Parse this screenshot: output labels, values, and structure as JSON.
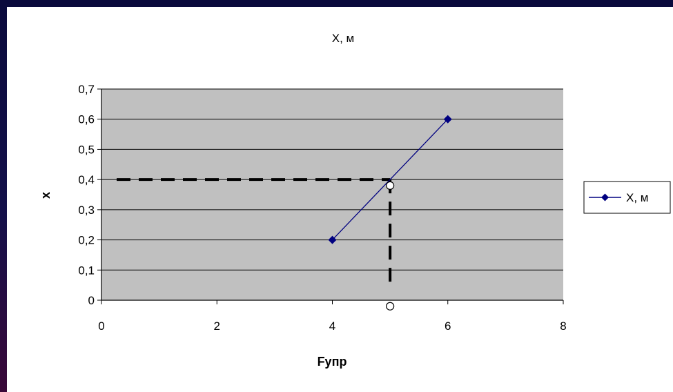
{
  "chart_data": {
    "type": "line",
    "title": "X, м",
    "xlabel": "Fупр",
    "ylabel": "x",
    "xlim": [
      0,
      8
    ],
    "ylim": [
      0,
      0.7
    ],
    "x_ticks": [
      0,
      2,
      4,
      6,
      8
    ],
    "x_tick_labels": [
      "0",
      "2",
      "4",
      "6",
      "8"
    ],
    "y_ticks": [
      0,
      0.1,
      0.2,
      0.3,
      0.4,
      0.5,
      0.6,
      0.7
    ],
    "y_tick_labels": [
      "0",
      "0,1",
      "0,2",
      "0,3",
      "0,4",
      "0,5",
      "0,6",
      "0,7"
    ],
    "grid": "horizontal",
    "legend_position": "right",
    "series": [
      {
        "name": "X, м",
        "color": "#000080",
        "marker": "diamond",
        "x": [
          4,
          6
        ],
        "y": [
          0.2,
          0.6
        ]
      }
    ],
    "annotations": {
      "dashed_horizontal": {
        "y": 0.4,
        "x_from": 0,
        "x_to": 5
      },
      "dashed_vertical": {
        "x": 5,
        "y_from": 0,
        "y_to": 0.4
      },
      "open_circles": [
        {
          "x": 5,
          "y": 0.38
        },
        {
          "x": 5,
          "y": -0.02
        }
      ]
    },
    "plot_background": "#c0c0c0"
  }
}
